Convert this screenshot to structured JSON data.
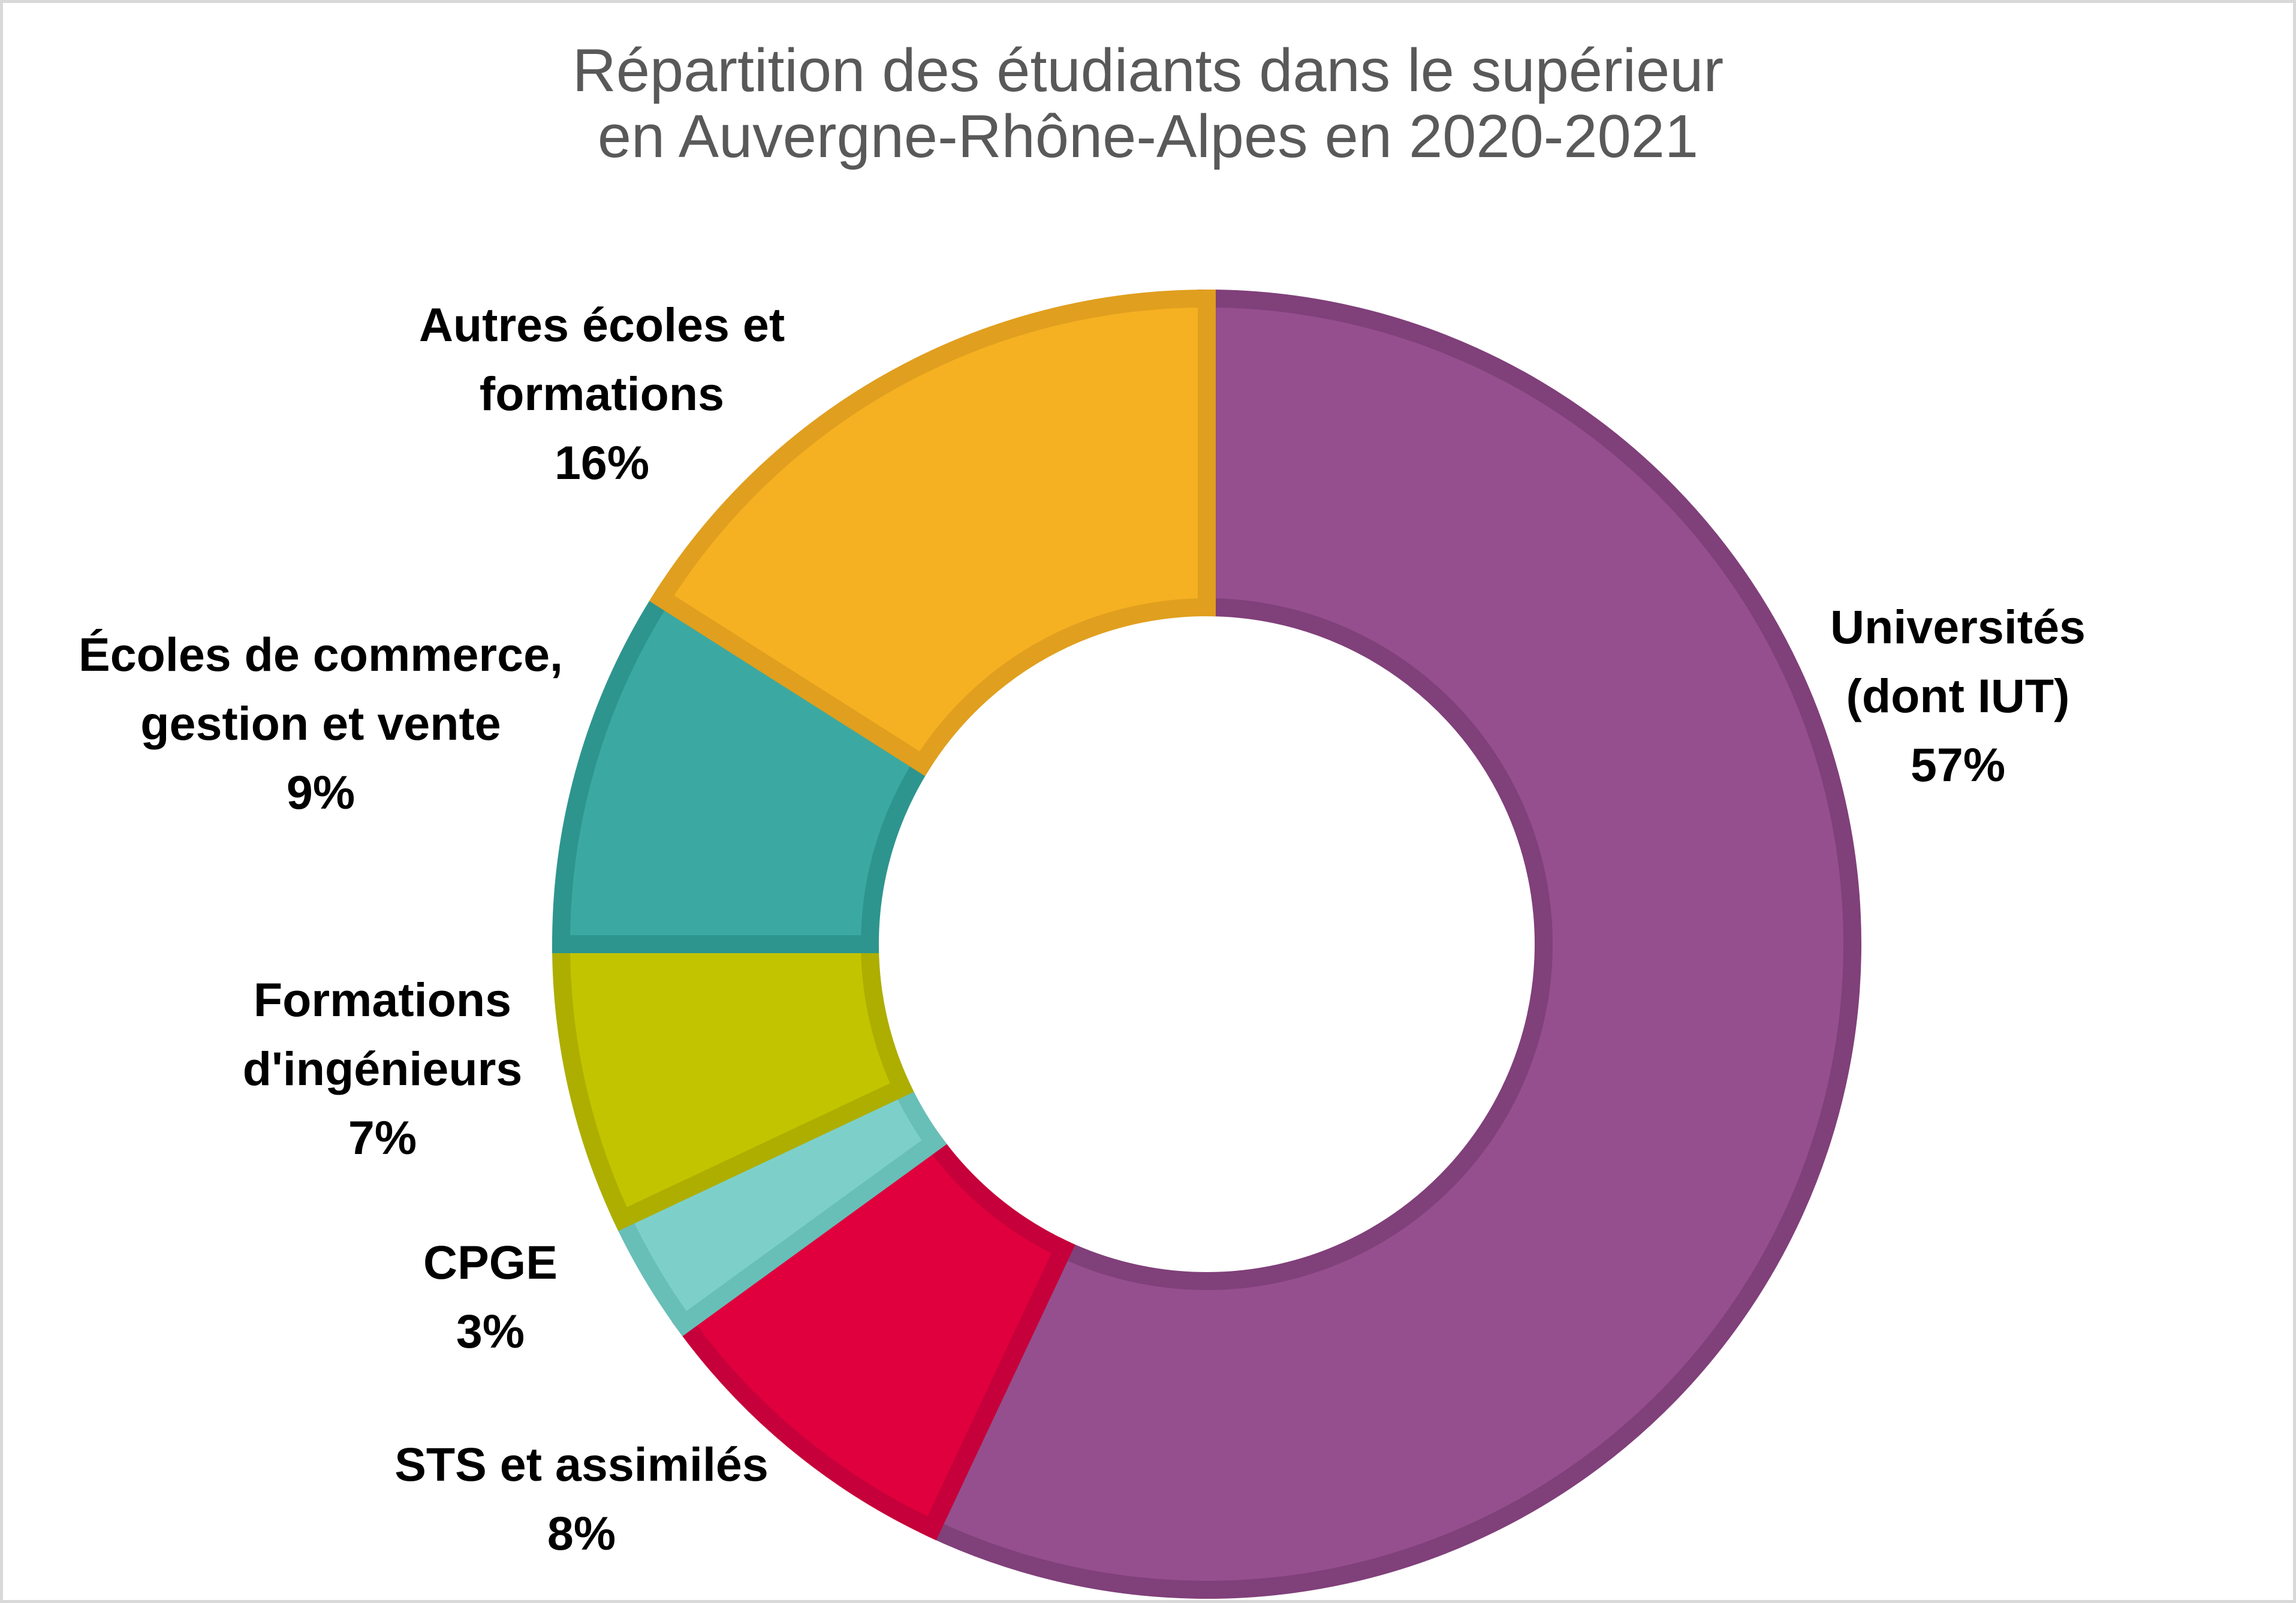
{
  "chart_data": {
    "type": "pie",
    "donut": true,
    "title": "Répartition des étudiants dans le supérieur en Auvergne-Rhône-Alpes en 2020-2021",
    "categories": [
      "Universités (dont IUT)",
      "STS et assimilés",
      "CPGE",
      "Formations d'ingénieurs",
      "Écoles de commerce, gestion et vente",
      "Autres écoles et formations"
    ],
    "values": [
      57,
      8,
      3,
      7,
      9,
      16
    ],
    "unit": "%",
    "colors": [
      "#954F8E",
      "#E0003D",
      "#7DD0CA",
      "#C3C400",
      "#3BA9A2",
      "#F5B122"
    ],
    "border_colors": [
      "#80407A",
      "#C6003A",
      "#67BFB8",
      "#ADAE00",
      "#2D958E",
      "#E09F1E"
    ],
    "title_color": "#595959",
    "legend": "none"
  }
}
